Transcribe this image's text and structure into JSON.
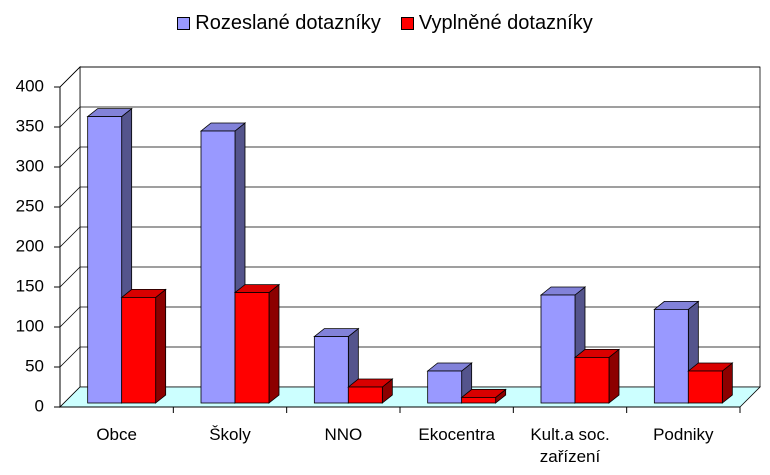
{
  "chart_data": {
    "type": "bar3d",
    "categories": [
      "Obce",
      "Školy",
      "NNO",
      "Ekocentra",
      "Kult.a soc. zařízení",
      "Podniky"
    ],
    "series": [
      {
        "name": "Rozeslané dotazníky",
        "color": "#9999ff",
        "values": [
          358,
          340,
          83,
          40,
          135,
          117
        ]
      },
      {
        "name": "Vyplněné dotazníky",
        "color": "#ff0000",
        "values": [
          132,
          138,
          20,
          7,
          57,
          40
        ]
      }
    ],
    "ylim": [
      0,
      400
    ],
    "yticks": [
      0,
      50,
      100,
      150,
      200,
      250,
      300,
      350,
      400
    ],
    "grid": true,
    "legend": "top"
  }
}
